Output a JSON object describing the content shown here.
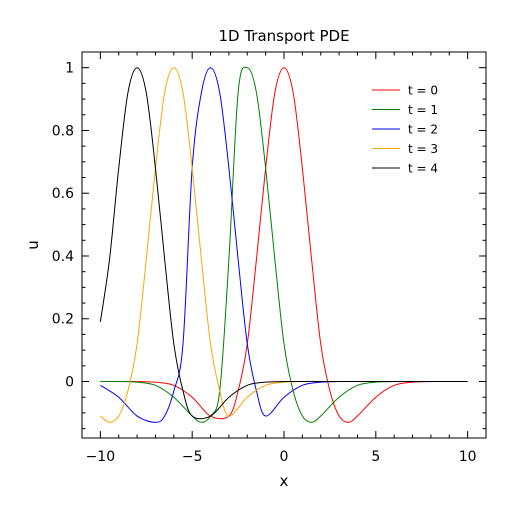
{
  "chart_data": {
    "type": "line",
    "title": "1D Transport PDE",
    "xlabel": "x",
    "ylabel": "u",
    "xlim": [
      -11,
      11
    ],
    "ylim": [
      -0.18,
      1.05
    ],
    "xticks": [
      -10,
      -5,
      0,
      5,
      10
    ],
    "xtick_labels": [
      "−10",
      "−5",
      "0",
      "5",
      "10"
    ],
    "yticks": [
      0,
      0.2,
      0.4,
      0.6,
      0.8,
      1
    ],
    "ytick_labels": [
      "0",
      "0.2",
      "0.4",
      "0.6",
      "0.8",
      "1"
    ],
    "grid": false,
    "legend_position": "top-right",
    "series": [
      {
        "name": "t = 0",
        "color": "#ff0000",
        "center": 0,
        "x": [
          -10,
          -9,
          -8,
          -7,
          -6,
          -5,
          -4,
          -3,
          -2.5,
          -2,
          -1.5,
          -1,
          -0.5,
          0,
          0.5,
          1,
          1.5,
          2,
          2.5,
          3,
          3.5,
          4,
          5,
          6,
          7,
          8,
          9,
          10
        ],
        "y": [
          0,
          0,
          0,
          -0.002,
          -0.012,
          -0.05,
          -0.11,
          -0.11,
          -0.03,
          0.12,
          0.39,
          0.68,
          0.92,
          1,
          0.92,
          0.68,
          0.39,
          0.12,
          -0.03,
          -0.11,
          -0.13,
          -0.11,
          -0.05,
          -0.012,
          -0.002,
          0,
          0,
          0
        ]
      },
      {
        "name": "t = 1",
        "color": "#008000",
        "center": -2,
        "x": [
          -10,
          -9,
          -8,
          -7,
          -6,
          -5,
          -4.5,
          -4,
          -3.5,
          -3,
          -2.5,
          -2,
          -1.5,
          -1,
          -0.5,
          0,
          0.5,
          1,
          1.5,
          2,
          3,
          4,
          5,
          6,
          7,
          8,
          9,
          10
        ],
        "y": [
          0,
          0,
          -0.002,
          -0.012,
          -0.05,
          -0.11,
          -0.13,
          -0.11,
          -0.03,
          0.39,
          0.92,
          1,
          0.92,
          0.68,
          0.39,
          0.12,
          -0.03,
          -0.11,
          -0.13,
          -0.11,
          -0.05,
          -0.012,
          -0.002,
          0,
          0,
          0,
          0,
          0
        ]
      },
      {
        "name": "t = 2",
        "color": "#0000ff",
        "center": -4,
        "x": [
          -10,
          -9,
          -8,
          -7,
          -6.5,
          -6,
          -5.5,
          -5,
          -4.5,
          -4,
          -3.5,
          -3,
          -2.5,
          -2,
          -1.5,
          -1,
          0,
          1,
          2,
          3,
          4,
          5,
          6,
          7,
          8,
          9,
          10
        ],
        "y": [
          -0.012,
          -0.05,
          -0.11,
          -0.13,
          -0.11,
          -0.03,
          0.12,
          0.68,
          0.92,
          1,
          0.92,
          0.68,
          0.39,
          0.12,
          -0.03,
          -0.11,
          -0.05,
          -0.012,
          -0.002,
          0,
          0,
          0,
          0,
          0,
          0,
          0,
          0
        ]
      },
      {
        "name": "t = 3",
        "color": "#ffa500",
        "center": -6,
        "x": [
          -10,
          -9.5,
          -9,
          -8.5,
          -8,
          -7.5,
          -7,
          -6.5,
          -6,
          -5.5,
          -5,
          -4.5,
          -4,
          -3.5,
          -3,
          -2,
          -1,
          0,
          1,
          2,
          3,
          4,
          5,
          6,
          7,
          8,
          9,
          10
        ],
        "y": [
          -0.11,
          -0.13,
          -0.11,
          -0.03,
          0.12,
          0.39,
          0.68,
          0.92,
          1,
          0.92,
          0.68,
          0.39,
          0.12,
          -0.03,
          -0.11,
          -0.05,
          -0.012,
          -0.002,
          0,
          0,
          0,
          0,
          0,
          0,
          0,
          0,
          0,
          0
        ]
      },
      {
        "name": "t = 4",
        "color": "#000000",
        "center": -8,
        "x": [
          -10,
          -9.5,
          -9,
          -8.5,
          -8,
          -7.5,
          -7,
          -6.5,
          -6,
          -5.5,
          -5,
          -4,
          -3,
          -2,
          -1,
          0,
          1,
          2,
          3,
          4,
          5,
          6,
          7,
          8,
          9,
          10
        ],
        "y": [
          0.19,
          0.39,
          0.68,
          0.92,
          1,
          0.92,
          0.68,
          0.39,
          0.12,
          -0.03,
          -0.11,
          -0.11,
          -0.05,
          -0.012,
          -0.002,
          0,
          0,
          0,
          0,
          0,
          0,
          0,
          0,
          0,
          0,
          0
        ]
      }
    ]
  }
}
